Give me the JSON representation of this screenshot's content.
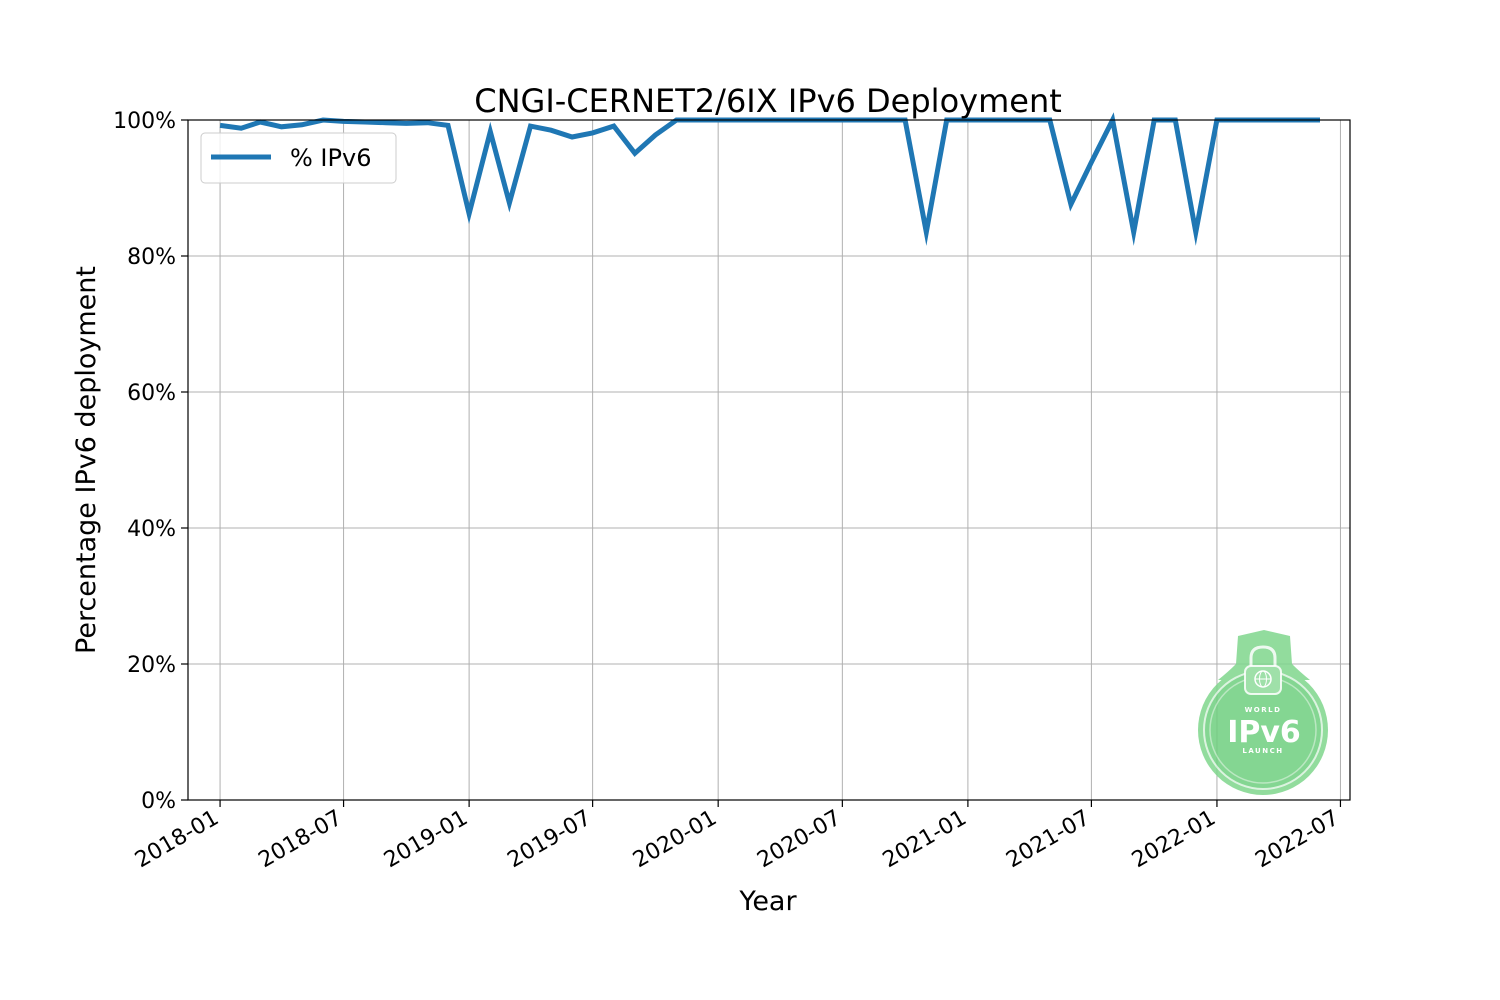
{
  "chart_data": {
    "type": "line",
    "title": "CNGI-CERNET2/6IX IPv6 Deployment",
    "xlabel": "Year",
    "ylabel": "Percentage IPv6 deployment",
    "x_range": [
      "2017-11-15",
      "2022-07-15"
    ],
    "ylim": [
      0,
      100
    ],
    "grid": true,
    "legend_position": "top-left",
    "x_ticks": [
      "2018-01",
      "2018-07",
      "2019-01",
      "2019-07",
      "2020-01",
      "2020-07",
      "2021-01",
      "2021-07",
      "2022-01",
      "2022-07"
    ],
    "y_ticks": [
      {
        "value": 0,
        "label": "0%"
      },
      {
        "value": 20,
        "label": "20%"
      },
      {
        "value": 40,
        "label": "40%"
      },
      {
        "value": 60,
        "label": "60%"
      },
      {
        "value": 80,
        "label": "80%"
      },
      {
        "value": 100,
        "label": "100%"
      }
    ],
    "series": [
      {
        "name": "% IPv6",
        "color": "#1f77b4",
        "x": [
          "2018-01",
          "2018-02",
          "2018-03",
          "2018-04",
          "2018-05",
          "2018-06",
          "2018-07",
          "2018-08",
          "2018-09",
          "2018-10",
          "2018-11",
          "2018-12",
          "2019-01",
          "2019-02",
          "2019-03",
          "2019-04",
          "2019-05",
          "2019-06",
          "2019-07",
          "2019-08",
          "2019-09",
          "2019-10",
          "2019-11",
          "2019-12",
          "2020-01",
          "2020-02",
          "2020-03",
          "2020-04",
          "2020-05",
          "2020-06",
          "2020-07",
          "2020-08",
          "2020-09",
          "2020-10",
          "2020-11",
          "2020-12",
          "2021-01",
          "2021-02",
          "2021-03",
          "2021-04",
          "2021-05",
          "2021-06",
          "2021-07",
          "2021-08",
          "2021-09",
          "2021-10",
          "2021-11",
          "2021-12",
          "2022-01",
          "2022-02",
          "2022-03",
          "2022-04",
          "2022-05",
          "2022-06"
        ],
        "values": [
          99.2,
          98.8,
          99.7,
          99.0,
          99.3,
          100,
          99.8,
          99.7,
          99.6,
          99.5,
          99.6,
          99.2,
          86.2,
          98.3,
          87.8,
          99.1,
          98.5,
          97.5,
          98.1,
          99.1,
          95.1,
          97.8,
          100,
          100,
          100,
          100,
          100,
          100,
          100,
          100,
          100,
          100,
          100,
          100,
          83.5,
          100,
          100,
          100,
          100,
          100,
          100,
          87.6,
          93.8,
          100,
          83.5,
          100,
          100,
          83.5,
          100,
          100,
          100,
          100,
          100,
          100
        ]
      }
    ]
  },
  "watermark": {
    "top_text": "WORLD",
    "main_text": "IPv6",
    "bottom_text": "LAUNCH",
    "color": "#6fcf7f"
  }
}
